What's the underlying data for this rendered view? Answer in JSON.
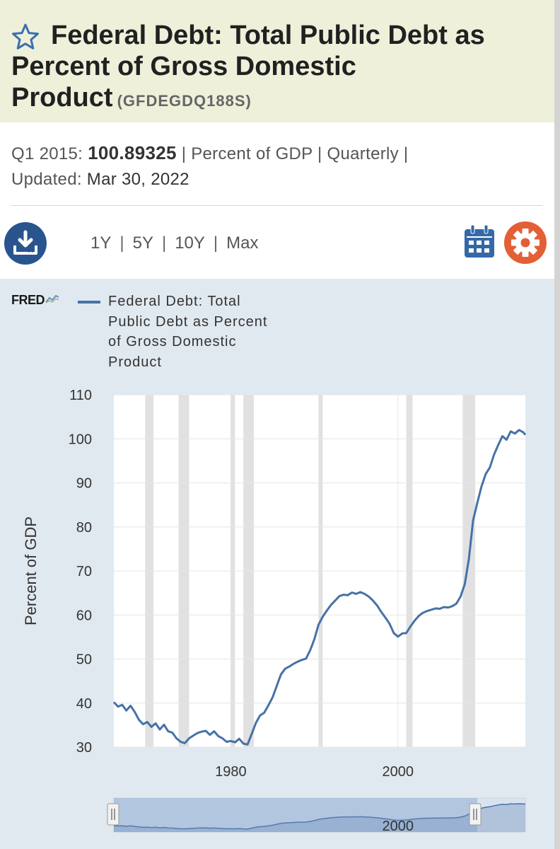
{
  "header": {
    "title": "Federal Debt: Total Public Debt as Percent of Gross Domestic Product",
    "series_id": "(GFDEGDQ188S)",
    "star_icon": "star-outline-icon"
  },
  "observation": {
    "period_label": "Q1 2015:",
    "value": "100.89325",
    "sep1": "|",
    "units": "Percent of GDP",
    "sep2": "|",
    "frequency": "Quarterly",
    "sep3": "|",
    "updated_label": "Updated:",
    "updated_date": "Mar 30, 2022"
  },
  "toolbar": {
    "download_icon": "download-icon",
    "ranges": [
      "1Y",
      "5Y",
      "10Y",
      "Max"
    ],
    "separator": "|",
    "calendar_icon": "calendar-icon",
    "gear_icon": "gear-icon"
  },
  "chart_data": {
    "type": "line",
    "brand": "FRED",
    "legend": "Federal Debt: Total Public Debt as Percent of Gross Domestic Product",
    "legend_lines": [
      "Federal Debt: Total",
      "Public Debt as Percent",
      "of Gross Domestic",
      "Product"
    ],
    "ylabel": "Percent of GDP",
    "ylim": [
      30,
      110
    ],
    "yticks": [
      30,
      40,
      50,
      60,
      70,
      80,
      90,
      100,
      110
    ],
    "xlim": [
      1966.0,
      2015.25
    ],
    "xticks": [
      1980,
      2000
    ],
    "grid": true,
    "line_color": "#4572a7",
    "recession_color": "#e1e1e1",
    "recessions": [
      [
        1969.75,
        1970.75
      ],
      [
        1973.75,
        1975.0
      ],
      [
        1980.0,
        1980.5
      ],
      [
        1981.5,
        1982.75
      ],
      [
        1990.5,
        1991.0
      ],
      [
        2001.0,
        2001.75
      ],
      [
        2007.75,
        2009.25
      ]
    ],
    "series": [
      {
        "name": "Federal Debt: Total Public Debt as Percent of Gross Domestic Product",
        "x": [
          1966.0,
          1966.5,
          1967.0,
          1967.5,
          1968.0,
          1968.5,
          1969.0,
          1969.5,
          1970.0,
          1970.5,
          1971.0,
          1971.5,
          1972.0,
          1972.5,
          1973.0,
          1973.5,
          1974.0,
          1974.5,
          1975.0,
          1975.5,
          1976.0,
          1976.5,
          1977.0,
          1977.5,
          1978.0,
          1978.5,
          1979.0,
          1979.5,
          1980.0,
          1980.5,
          1981.0,
          1981.5,
          1982.0,
          1982.5,
          1983.0,
          1983.5,
          1984.0,
          1984.5,
          1985.0,
          1985.5,
          1986.0,
          1986.5,
          1987.0,
          1987.5,
          1988.0,
          1988.5,
          1989.0,
          1989.5,
          1990.0,
          1990.5,
          1991.0,
          1991.5,
          1992.0,
          1992.5,
          1993.0,
          1993.5,
          1994.0,
          1994.5,
          1995.0,
          1995.5,
          1996.0,
          1996.5,
          1997.0,
          1997.5,
          1998.0,
          1998.5,
          1999.0,
          1999.5,
          2000.0,
          2000.5,
          2001.0,
          2001.5,
          2002.0,
          2002.5,
          2003.0,
          2003.5,
          2004.0,
          2004.5,
          2005.0,
          2005.5,
          2006.0,
          2006.5,
          2007.0,
          2007.5,
          2008.0,
          2008.5,
          2009.0,
          2009.5,
          2010.0,
          2010.5,
          2011.0,
          2011.5,
          2012.0,
          2012.5,
          2013.0,
          2013.5,
          2014.0,
          2014.5,
          2015.0,
          2015.25
        ],
        "values": [
          40.2,
          39.2,
          39.6,
          38.3,
          39.4,
          38.0,
          36.2,
          35.2,
          35.7,
          34.6,
          35.4,
          34.0,
          35.1,
          33.6,
          33.3,
          32.0,
          31.2,
          30.9,
          32.0,
          32.6,
          33.2,
          33.5,
          33.7,
          32.8,
          33.6,
          32.5,
          32.0,
          31.2,
          31.4,
          31.1,
          31.9,
          30.8,
          30.6,
          33.0,
          35.5,
          37.2,
          37.8,
          39.5,
          41.3,
          43.9,
          46.5,
          47.8,
          48.3,
          48.9,
          49.4,
          49.8,
          50.1,
          52.0,
          54.5,
          57.8,
          59.6,
          61.0,
          62.3,
          63.3,
          64.3,
          64.6,
          64.5,
          65.1,
          64.8,
          65.2,
          64.8,
          64.2,
          63.3,
          62.2,
          60.7,
          59.4,
          58.0,
          55.9,
          55.1,
          55.8,
          55.9,
          57.4,
          58.7,
          59.8,
          60.5,
          60.9,
          61.2,
          61.5,
          61.4,
          61.8,
          61.7,
          62.0,
          62.6,
          64.2,
          67.0,
          72.8,
          81.5,
          85.5,
          89.2,
          92.0,
          93.5,
          96.4,
          98.6,
          100.6,
          99.8,
          101.7,
          101.2,
          102.0,
          101.5,
          100.9
        ]
      }
    ],
    "navigator": {
      "tick": "2000",
      "handle_left_icon": "grip-handle-icon",
      "handle_right_icon": "grip-handle-icon"
    }
  }
}
